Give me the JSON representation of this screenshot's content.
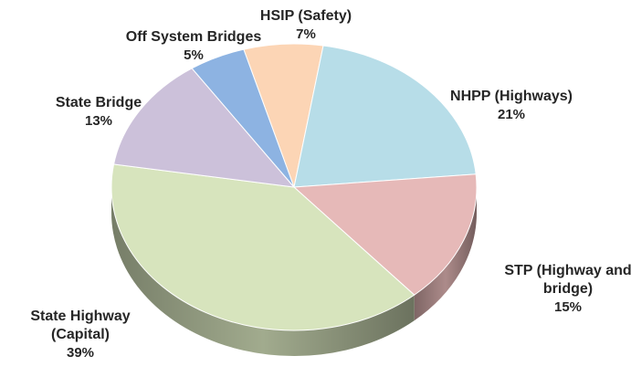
{
  "chart_data": {
    "type": "pie",
    "categories": [
      "HSIP (Safety)",
      "NHPP (Highways)",
      "STP (Highway and bridge)",
      "State Highway (Capital)",
      "State Bridge",
      "Off System Bridges"
    ],
    "values": [
      7,
      21,
      15,
      39,
      13,
      5
    ],
    "value_labels": [
      "7%",
      "21%",
      "15%",
      "39%",
      "13%",
      "5%"
    ],
    "colors": [
      "#fcd5b5",
      "#b7dde8",
      "#e6b9b8",
      "#d7e4bd",
      "#ccc1da",
      "#8db3e2"
    ]
  }
}
